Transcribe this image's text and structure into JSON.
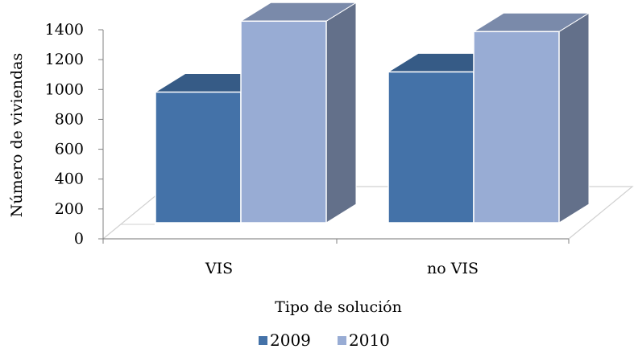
{
  "chart_data": {
    "type": "bar",
    "style": "3d-clustered-column",
    "categories": [
      "VIS",
      "no VIS"
    ],
    "series": [
      {
        "name": "2009",
        "values": [
          875,
          1010
        ],
        "color": "#4472a8"
      },
      {
        "name": "2010",
        "values": [
          1350,
          1280
        ],
        "color": "#98acd4"
      }
    ],
    "xlabel": "Tipo de solución",
    "ylabel": "Número de viviendas",
    "ylim": [
      0,
      1400
    ],
    "yticks": [
      "0",
      "200",
      "400",
      "600",
      "800",
      "1000",
      "1200",
      "1400"
    ],
    "grid": false,
    "legend": "bottom"
  }
}
